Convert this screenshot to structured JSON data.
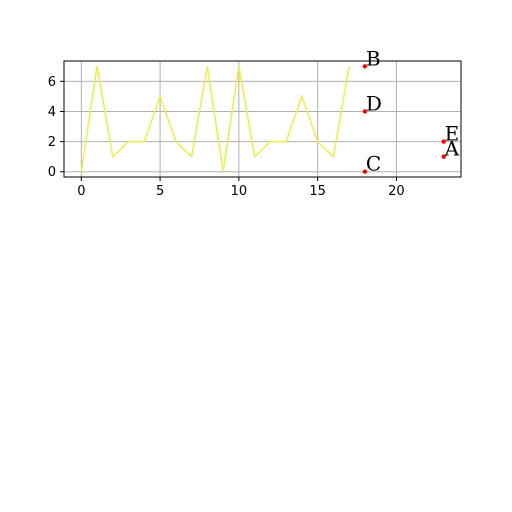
{
  "chart_data": {
    "type": "line",
    "title": "",
    "xlabel": "",
    "ylabel": "",
    "xlim": [
      -1.1,
      24.1
    ],
    "ylim": [
      -0.35,
      7.35
    ],
    "grid": true,
    "x_ticks": [
      0,
      5,
      10,
      15,
      20
    ],
    "y_ticks": [
      0,
      2,
      4,
      6
    ],
    "series": [
      {
        "color": "#eeee55",
        "x": [
          0,
          1,
          2,
          3,
          4,
          5,
          6,
          7,
          8,
          9,
          10,
          11,
          12,
          13,
          14,
          15,
          16,
          17
        ],
        "y": [
          0,
          7,
          1,
          2,
          2,
          5,
          2,
          1,
          7,
          0,
          7,
          1,
          2,
          2,
          5,
          2,
          1,
          7
        ]
      }
    ],
    "labeled_points": [
      {
        "label": "B",
        "x": 18,
        "y": 7
      },
      {
        "label": "D",
        "x": 18,
        "y": 4
      },
      {
        "label": "C",
        "x": 18,
        "y": 0
      },
      {
        "label": "E",
        "x": 23,
        "y": 2
      },
      {
        "label": "A",
        "x": 23,
        "y": 1
      }
    ],
    "point_color": "#ff0000",
    "axis_color": "#000000",
    "grid_color": "#b0b0b0"
  }
}
